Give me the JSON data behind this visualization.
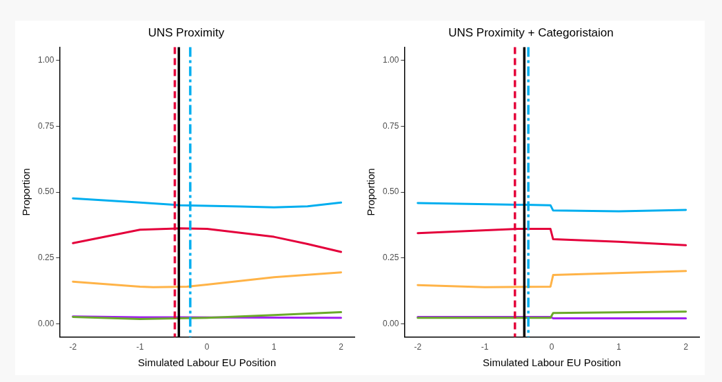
{
  "chart_data": [
    {
      "type": "line",
      "title": "UNS Proximity",
      "xlabel": "Simulated Labour EU Position",
      "ylabel": "Proportion",
      "xlim": [
        -2.2,
        2.2
      ],
      "xticks": [
        -2,
        -1,
        0,
        1,
        2
      ],
      "ylim": [
        -0.05,
        1.05
      ],
      "yticks": [
        {
          "value": 0,
          "label": "0.00"
        },
        {
          "value": 0.25,
          "label": "0.25"
        },
        {
          "value": 0.5,
          "label": "0.50"
        },
        {
          "value": 0.75,
          "label": "0.75"
        },
        {
          "value": 1,
          "label": "1.00"
        }
      ],
      "grid": false,
      "legend": false,
      "marker": "none",
      "line_style": "solid",
      "series": [
        {
          "color": "#00aeef",
          "x": [
            -2,
            -1,
            -0.4,
            0.5,
            1,
            1.5,
            2
          ],
          "values": [
            0.476,
            0.46,
            0.45,
            0.445,
            0.442,
            0.446,
            0.46
          ]
        },
        {
          "color": "#e4003b",
          "x": [
            -2,
            -1,
            -0.4,
            0,
            1,
            1.5,
            2
          ],
          "values": [
            0.306,
            0.357,
            0.362,
            0.36,
            0.33,
            0.303,
            0.273
          ]
        },
        {
          "color": "#ffb347",
          "x": [
            -2,
            -1,
            -0.8,
            -0.3,
            0,
            1,
            2
          ],
          "values": [
            0.16,
            0.141,
            0.139,
            0.141,
            0.149,
            0.177,
            0.195
          ]
        },
        {
          "color": "#6aaa2a",
          "x": [
            -2,
            -1,
            0,
            1,
            2
          ],
          "values": [
            0.026,
            0.018,
            0.023,
            0.033,
            0.044
          ]
        },
        {
          "color": "#a020f0",
          "x": [
            -2,
            -1,
            2
          ],
          "values": [
            0.028,
            0.025,
            0.023
          ]
        }
      ],
      "ref_lines": [
        {
          "axis": "x",
          "value": -0.48,
          "color": "#e4003b",
          "line_style": "dashed"
        },
        {
          "axis": "x",
          "value": -0.42,
          "color": "#000000",
          "line_style": "solid"
        },
        {
          "axis": "x",
          "value": -0.25,
          "color": "#00aeef",
          "line_style": "dashdot"
        }
      ]
    },
    {
      "type": "line",
      "title": "UNS Proximity + Categoristaion",
      "xlabel": "Simulated Labour EU Position",
      "ylabel": "Proportion",
      "xlim": [
        -2.2,
        2.2
      ],
      "xticks": [
        -2,
        -1,
        0,
        1,
        2
      ],
      "ylim": [
        -0.05,
        1.05
      ],
      "yticks": [
        {
          "value": 0,
          "label": "0.00"
        },
        {
          "value": 0.25,
          "label": "0.25"
        },
        {
          "value": 0.5,
          "label": "0.50"
        },
        {
          "value": 0.75,
          "label": "0.75"
        },
        {
          "value": 1,
          "label": "1.00"
        }
      ],
      "grid": false,
      "legend": false,
      "marker": "none",
      "line_style": "solid",
      "series": [
        {
          "color": "#00aeef",
          "x": [
            -2,
            -0.5,
            -0.02,
            0.02,
            1,
            2
          ],
          "values": [
            0.458,
            0.452,
            0.45,
            0.43,
            0.427,
            0.432
          ]
        },
        {
          "color": "#e4003b",
          "x": [
            -2,
            -0.5,
            -0.02,
            0.02,
            1,
            2
          ],
          "values": [
            0.344,
            0.36,
            0.36,
            0.321,
            0.311,
            0.298
          ]
        },
        {
          "color": "#ffb347",
          "x": [
            -2,
            -1,
            -0.02,
            0.02,
            2
          ],
          "values": [
            0.147,
            0.139,
            0.141,
            0.185,
            0.2
          ]
        },
        {
          "color": "#6aaa2a",
          "x": [
            -2,
            -0.02,
            0.02,
            2
          ],
          "values": [
            0.023,
            0.023,
            0.041,
            0.046
          ]
        },
        {
          "color": "#a020f0",
          "x": [
            -2,
            -0.02,
            0.02,
            2
          ],
          "values": [
            0.026,
            0.026,
            0.021,
            0.021
          ]
        }
      ],
      "ref_lines": [
        {
          "axis": "x",
          "value": -0.55,
          "color": "#e4003b",
          "line_style": "dashed"
        },
        {
          "axis": "x",
          "value": -0.41,
          "color": "#000000",
          "line_style": "solid"
        },
        {
          "axis": "x",
          "value": -0.35,
          "color": "#00aeef",
          "line_style": "dashdot"
        }
      ]
    }
  ]
}
